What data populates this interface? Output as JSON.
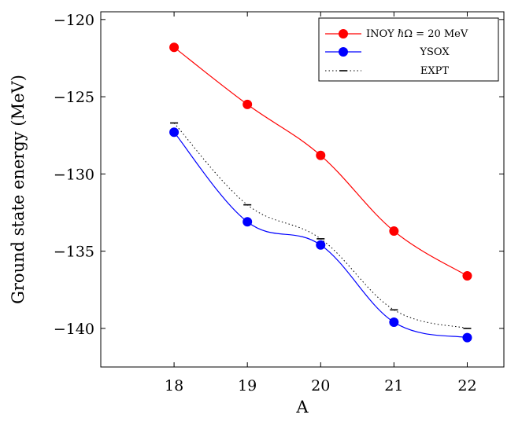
{
  "chart_data": {
    "type": "line",
    "xlabel": "A",
    "ylabel": "Ground state energy (MeV)",
    "x": [
      18,
      19,
      20,
      21,
      22
    ],
    "xlim": [
      17,
      22.5
    ],
    "ylim": [
      -142.5,
      -119.5
    ],
    "xticks": [
      "18",
      "19",
      "20",
      "21",
      "22"
    ],
    "yticks": [
      "−120",
      "−125",
      "−130",
      "−135",
      "−140"
    ],
    "ytick_values": [
      -120,
      -125,
      -130,
      -135,
      -140
    ],
    "legend_position": "top-right",
    "grid": false,
    "series": [
      {
        "name": "INOY ℏΩ = 20 MeV",
        "color": "#ff0000",
        "marker": "circle",
        "style": "solid",
        "values": [
          -121.8,
          -125.5,
          -128.8,
          -133.7,
          -136.6
        ]
      },
      {
        "name": "YSOX",
        "color": "#0000ff",
        "marker": "circle",
        "style": "solid",
        "values": [
          -127.3,
          -133.1,
          -134.6,
          -139.6,
          -140.6
        ]
      },
      {
        "name": "EXPT",
        "color": "#000000",
        "marker": "dash",
        "style": "dotted",
        "values": [
          -126.7,
          -132.0,
          -134.2,
          -138.8,
          -140.0
        ]
      }
    ]
  }
}
